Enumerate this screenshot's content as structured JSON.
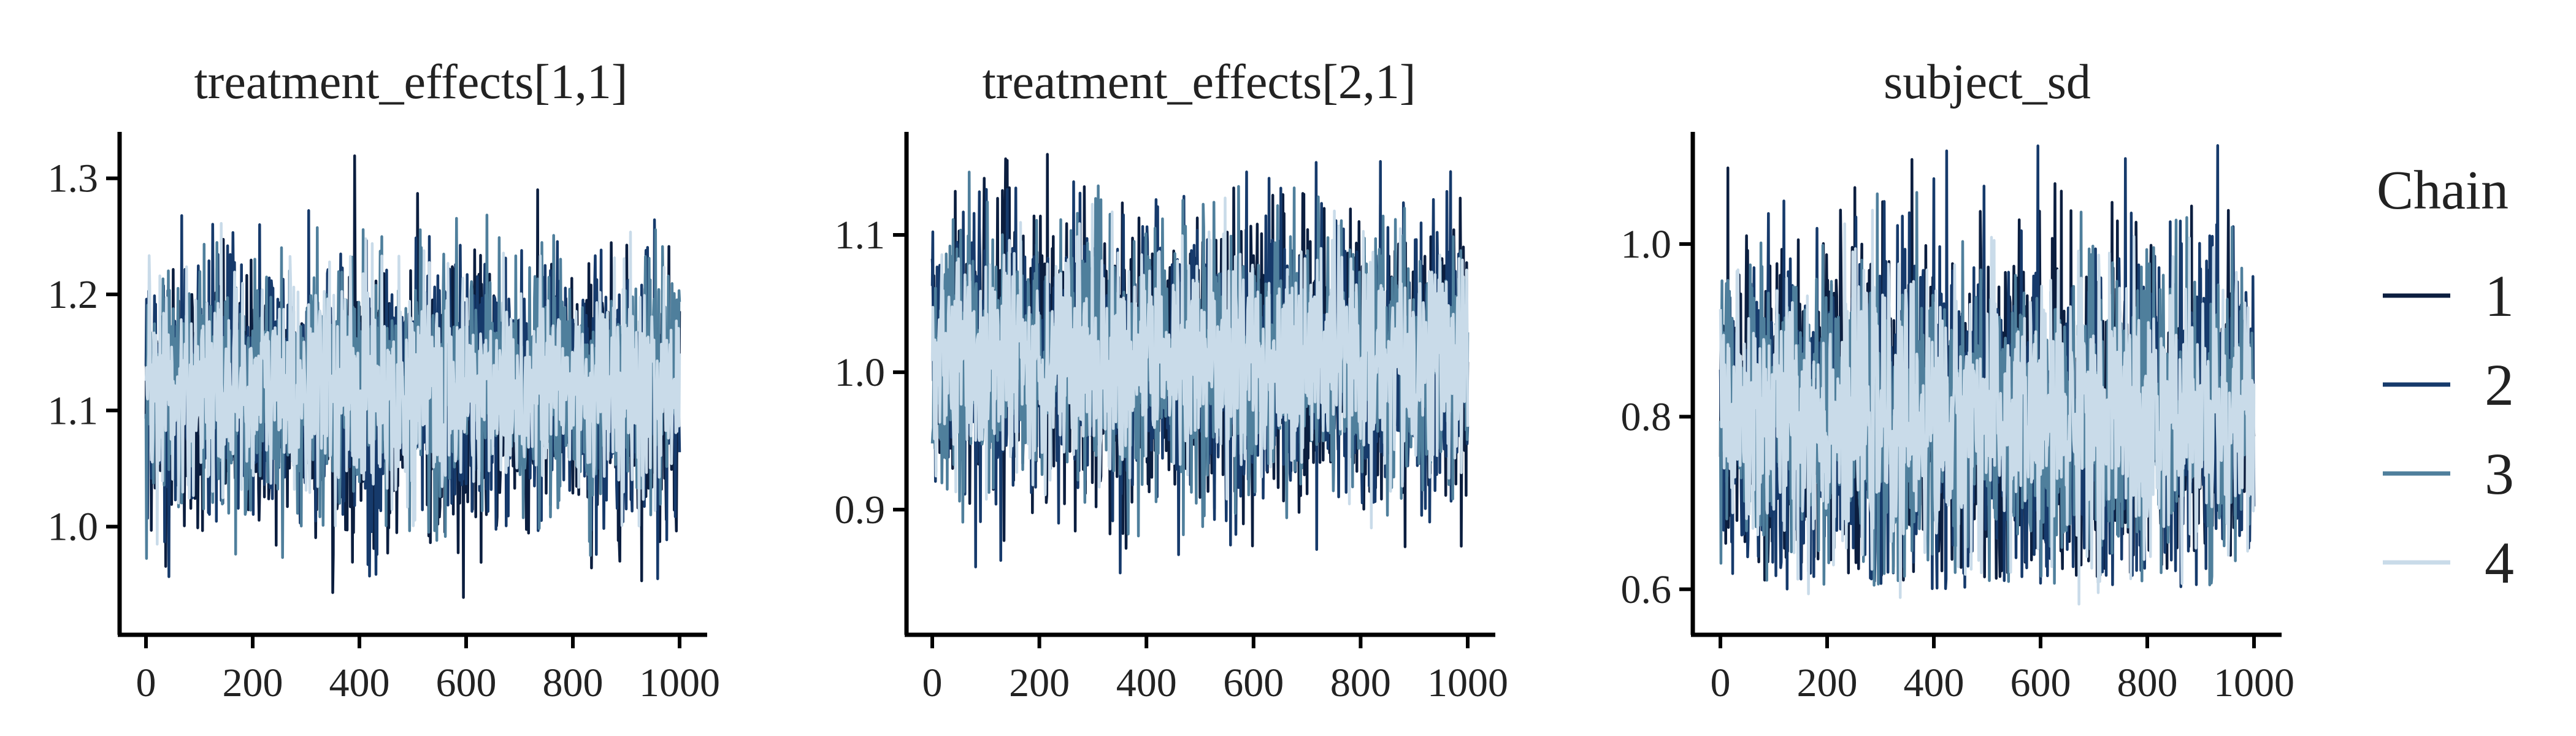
{
  "chart_data": {
    "type": "line",
    "legend": {
      "title": "Chain",
      "placement": "right",
      "entries": [
        {
          "label": "1",
          "color": "#0b1e3f"
        },
        {
          "label": "2",
          "color": "#163a6b"
        },
        {
          "label": "3",
          "color": "#4f7f9c"
        },
        {
          "label": "4",
          "color": "#c9dbe9"
        }
      ]
    },
    "x_range": [
      0,
      1000
    ],
    "x_ticks": [
      0,
      200,
      400,
      600,
      800,
      1000
    ],
    "panels": [
      {
        "title": "treatment_effects[1,1]",
        "ylim": [
          0.92,
          1.34
        ],
        "y_ticks": [
          "1.0",
          "1.1",
          "1.2",
          "1.3"
        ],
        "series": [
          {
            "name": "1",
            "center": 1.11,
            "spread": 0.055,
            "min": 0.935,
            "max": 1.325
          },
          {
            "name": "2",
            "center": 1.12,
            "spread": 0.055,
            "min": 0.95,
            "max": 1.29
          },
          {
            "name": "3",
            "center": 1.12,
            "spread": 0.05,
            "min": 0.97,
            "max": 1.28
          },
          {
            "name": "4",
            "center": 1.12,
            "spread": 0.045,
            "min": 0.95,
            "max": 1.335
          }
        ]
      },
      {
        "title": "treatment_effects[2,1]",
        "ylim": [
          0.82,
          1.175
        ],
        "y_ticks": [
          "0.9",
          "1.0",
          "1.1"
        ],
        "series": [
          {
            "name": "1",
            "center": 1.01,
            "spread": 0.05,
            "min": 0.87,
            "max": 1.165
          },
          {
            "name": "2",
            "center": 1.01,
            "spread": 0.05,
            "min": 0.82,
            "max": 1.16
          },
          {
            "name": "3",
            "center": 1.01,
            "spread": 0.045,
            "min": 0.88,
            "max": 1.163
          },
          {
            "name": "4",
            "center": 1.01,
            "spread": 0.04,
            "min": 0.88,
            "max": 1.14
          }
        ]
      },
      {
        "title": "subject_sd",
        "ylim": [
          0.565,
          1.13
        ],
        "y_ticks": [
          "0.6",
          "0.8",
          "1.0"
        ],
        "series": [
          {
            "name": "1",
            "center": 0.8,
            "spread": 0.095,
            "min": 0.61,
            "max": 1.12
          },
          {
            "name": "2",
            "center": 0.8,
            "spread": 0.095,
            "min": 0.6,
            "max": 1.12
          },
          {
            "name": "3",
            "center": 0.8,
            "spread": 0.085,
            "min": 0.6,
            "max": 1.06
          },
          {
            "name": "4",
            "center": 0.8,
            "spread": 0.075,
            "min": 0.58,
            "max": 1.11
          }
        ]
      }
    ]
  }
}
